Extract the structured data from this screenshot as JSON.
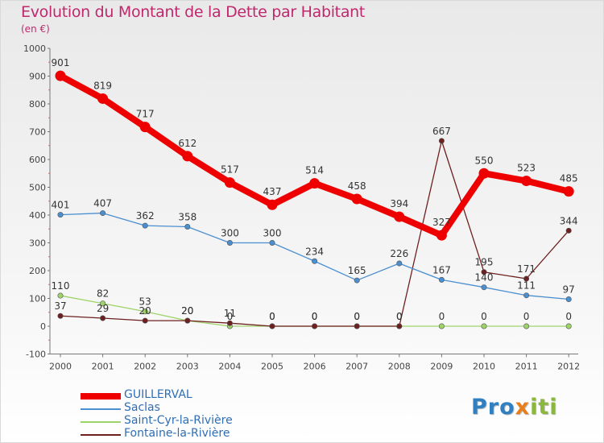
{
  "title": "Evolution du Montant de la Dette par Habitant",
  "subtitle": "(en €)",
  "logo": {
    "p1": "Pro",
    "p2": "x",
    "p3": "iti"
  },
  "chart_data": {
    "type": "line",
    "x": [
      "2000",
      "2001",
      "2002",
      "2003",
      "2004",
      "2005",
      "2006",
      "2007",
      "2008",
      "2009",
      "2010",
      "2011",
      "2012"
    ],
    "ylim": [
      -100,
      1000
    ],
    "yticks": [
      -100,
      0,
      100,
      200,
      300,
      400,
      500,
      600,
      700,
      800,
      900,
      1000
    ],
    "grid": false,
    "legend_position": "bottom-left",
    "series": [
      {
        "name": "GUILLERVAL",
        "color": "#ee0000",
        "values": [
          901,
          819,
          717,
          612,
          517,
          437,
          514,
          458,
          394,
          327,
          550,
          523,
          485
        ]
      },
      {
        "name": "Saclas",
        "color": "#4a8fd0",
        "values": [
          401,
          407,
          362,
          358,
          300,
          300,
          234,
          165,
          226,
          167,
          140,
          111,
          97
        ]
      },
      {
        "name": "Saint-Cyr-la-Rivière",
        "color": "#9ed36a",
        "values": [
          110,
          82,
          53,
          20,
          0,
          0,
          0,
          0,
          0,
          0,
          0,
          0,
          0
        ]
      },
      {
        "name": "Fontaine-la-Rivière",
        "color": "#6e1f1f",
        "values": [
          37,
          29,
          20,
          20,
          11,
          0,
          0,
          0,
          0,
          667,
          195,
          171,
          344
        ]
      }
    ],
    "labels": [
      {
        "s": 0,
        "i": 0,
        "text": "901"
      },
      {
        "s": 0,
        "i": 1,
        "text": "819"
      },
      {
        "s": 0,
        "i": 2,
        "text": "717"
      },
      {
        "s": 0,
        "i": 3,
        "text": "612"
      },
      {
        "s": 0,
        "i": 4,
        "text": "517"
      },
      {
        "s": 0,
        "i": 5,
        "text": "437"
      },
      {
        "s": 0,
        "i": 6,
        "text": "514"
      },
      {
        "s": 0,
        "i": 7,
        "text": "458"
      },
      {
        "s": 0,
        "i": 8,
        "text": "394"
      },
      {
        "s": 0,
        "i": 9,
        "text": "327"
      },
      {
        "s": 0,
        "i": 10,
        "text": "550"
      },
      {
        "s": 0,
        "i": 11,
        "text": "523"
      },
      {
        "s": 0,
        "i": 12,
        "text": "485"
      },
      {
        "s": 1,
        "i": 0,
        "text": "401"
      },
      {
        "s": 1,
        "i": 1,
        "text": "407"
      },
      {
        "s": 1,
        "i": 2,
        "text": "362"
      },
      {
        "s": 1,
        "i": 3,
        "text": "358"
      },
      {
        "s": 1,
        "i": 4,
        "text": "300"
      },
      {
        "s": 1,
        "i": 5,
        "text": "300"
      },
      {
        "s": 1,
        "i": 6,
        "text": "234"
      },
      {
        "s": 1,
        "i": 7,
        "text": "165"
      },
      {
        "s": 1,
        "i": 8,
        "text": "226"
      },
      {
        "s": 1,
        "i": 9,
        "text": "167"
      },
      {
        "s": 1,
        "i": 10,
        "text": "140"
      },
      {
        "s": 1,
        "i": 11,
        "text": "111"
      },
      {
        "s": 1,
        "i": 12,
        "text": "97"
      },
      {
        "s": 2,
        "i": 0,
        "text": "110"
      },
      {
        "s": 2,
        "i": 1,
        "text": "82"
      },
      {
        "s": 2,
        "i": 2,
        "text": "53"
      },
      {
        "s": 2,
        "i": 3,
        "text": "20"
      },
      {
        "s": 2,
        "i": 4,
        "text": "0"
      },
      {
        "s": 2,
        "i": 5,
        "text": "0"
      },
      {
        "s": 2,
        "i": 6,
        "text": "0"
      },
      {
        "s": 2,
        "i": 7,
        "text": "0"
      },
      {
        "s": 2,
        "i": 8,
        "text": "0"
      },
      {
        "s": 2,
        "i": 9,
        "text": "0"
      },
      {
        "s": 2,
        "i": 10,
        "text": "0"
      },
      {
        "s": 2,
        "i": 11,
        "text": "0"
      },
      {
        "s": 2,
        "i": 12,
        "text": "0"
      },
      {
        "s": 3,
        "i": 0,
        "text": "37"
      },
      {
        "s": 3,
        "i": 1,
        "text": "29"
      },
      {
        "s": 3,
        "i": 2,
        "text": "20"
      },
      {
        "s": 3,
        "i": 3,
        "text": "20"
      },
      {
        "s": 3,
        "i": 4,
        "text": "11"
      },
      {
        "s": 3,
        "i": 5,
        "text": "0"
      },
      {
        "s": 3,
        "i": 6,
        "text": "0"
      },
      {
        "s": 3,
        "i": 7,
        "text": "0"
      },
      {
        "s": 3,
        "i": 8,
        "text": "0"
      },
      {
        "s": 3,
        "i": 9,
        "text": "667"
      },
      {
        "s": 3,
        "i": 10,
        "text": "195"
      },
      {
        "s": 3,
        "i": 11,
        "text": "171"
      },
      {
        "s": 3,
        "i": 12,
        "text": "344"
      }
    ]
  }
}
